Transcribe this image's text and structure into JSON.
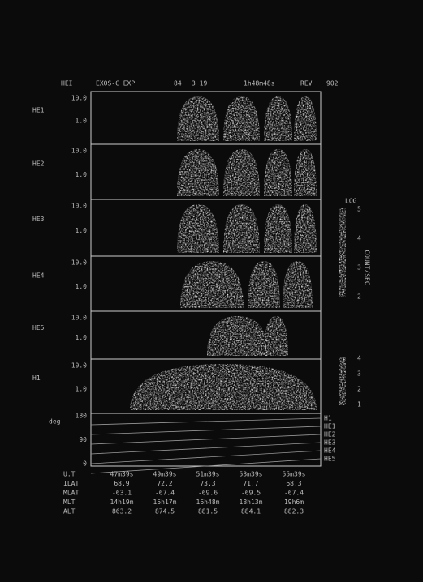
{
  "header": {
    "instrument": "HEI",
    "experiment": "EXOS-C EXP",
    "year": "84",
    "date": "3 19",
    "time": "1h48m48s",
    "rev_label": "REV",
    "rev": "902"
  },
  "panels": [
    {
      "label": "HE1",
      "ticks": [
        "10.0",
        "1.0"
      ]
    },
    {
      "label": "HE2",
      "ticks": [
        "10.0",
        "1.0"
      ]
    },
    {
      "label": "HE3",
      "ticks": [
        "10.0",
        "1.0"
      ]
    },
    {
      "label": "HE4",
      "ticks": [
        "10.0",
        "1.0"
      ]
    },
    {
      "label": "HE5",
      "ticks": [
        "10.0",
        "1.0"
      ]
    },
    {
      "label": "H1",
      "ticks": [
        "10.0",
        "1.0"
      ]
    }
  ],
  "angle_panel": {
    "label": "deg",
    "ticks": [
      "180",
      "90",
      "0"
    ],
    "legend": [
      "H1",
      "HE1",
      "HE2",
      "HE3",
      "HE4",
      "HE5"
    ]
  },
  "colorbar": {
    "title": "LOG",
    "ticks": [
      "5",
      "4",
      "3",
      "2"
    ],
    "unit": "COUNT/SEC"
  },
  "colorbar2": {
    "ticks": [
      "4",
      "3",
      "2",
      "1"
    ]
  },
  "ephemeris": {
    "rows": [
      {
        "label": "U.T",
        "values": [
          "47m39s",
          "49m39s",
          "51m39s",
          "53m39s",
          "55m39s"
        ]
      },
      {
        "label": "ILAT",
        "values": [
          "68.9",
          "72.2",
          "73.3",
          "71.7",
          "68.3"
        ]
      },
      {
        "label": "MLAT",
        "values": [
          "-63.1",
          "-67.4",
          "-69.6",
          "-69.5",
          "-67.4"
        ]
      },
      {
        "label": "MLT",
        "values": [
          "14h19m",
          "15h17m",
          "16h48m",
          "18h13m",
          "19h6m"
        ]
      },
      {
        "label": "ALT",
        "values": [
          "863.2",
          "874.5",
          "881.5",
          "884.1",
          "882.3"
        ]
      }
    ]
  }
}
